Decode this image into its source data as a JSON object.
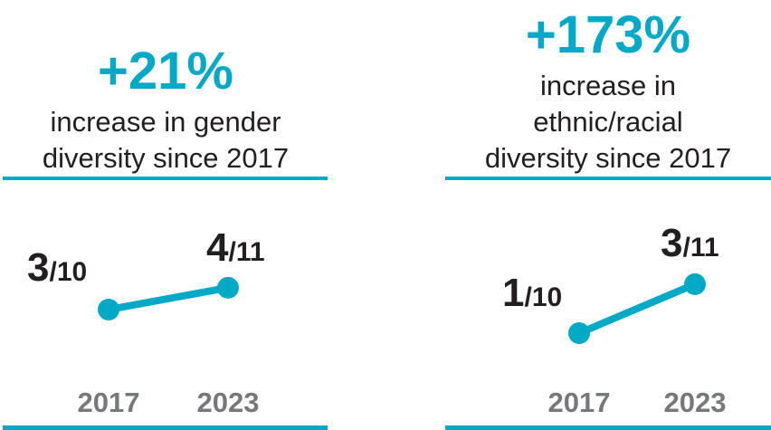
{
  "colors": {
    "accent": "#00a9c6",
    "text": "#231f20",
    "year": "#77787b"
  },
  "chart_data": [
    {
      "type": "line",
      "headline": "+21%",
      "caption_lines": [
        "increase in gender",
        "diversity since 2017"
      ],
      "categories": [
        "2017",
        "2023"
      ],
      "points": [
        {
          "year": "2017",
          "numerator": "3",
          "denominator": "10",
          "value": 0.3
        },
        {
          "year": "2023",
          "numerator": "4",
          "denominator": "11",
          "value": 0.364
        }
      ]
    },
    {
      "type": "line",
      "headline": "+173%",
      "caption_lines": [
        "increase in",
        "ethnic/racial",
        "diversity since 2017"
      ],
      "categories": [
        "2017",
        "2023"
      ],
      "points": [
        {
          "year": "2017",
          "numerator": "1",
          "denominator": "10",
          "value": 0.1
        },
        {
          "year": "2023",
          "numerator": "3",
          "denominator": "11",
          "value": 0.273
        }
      ]
    }
  ]
}
